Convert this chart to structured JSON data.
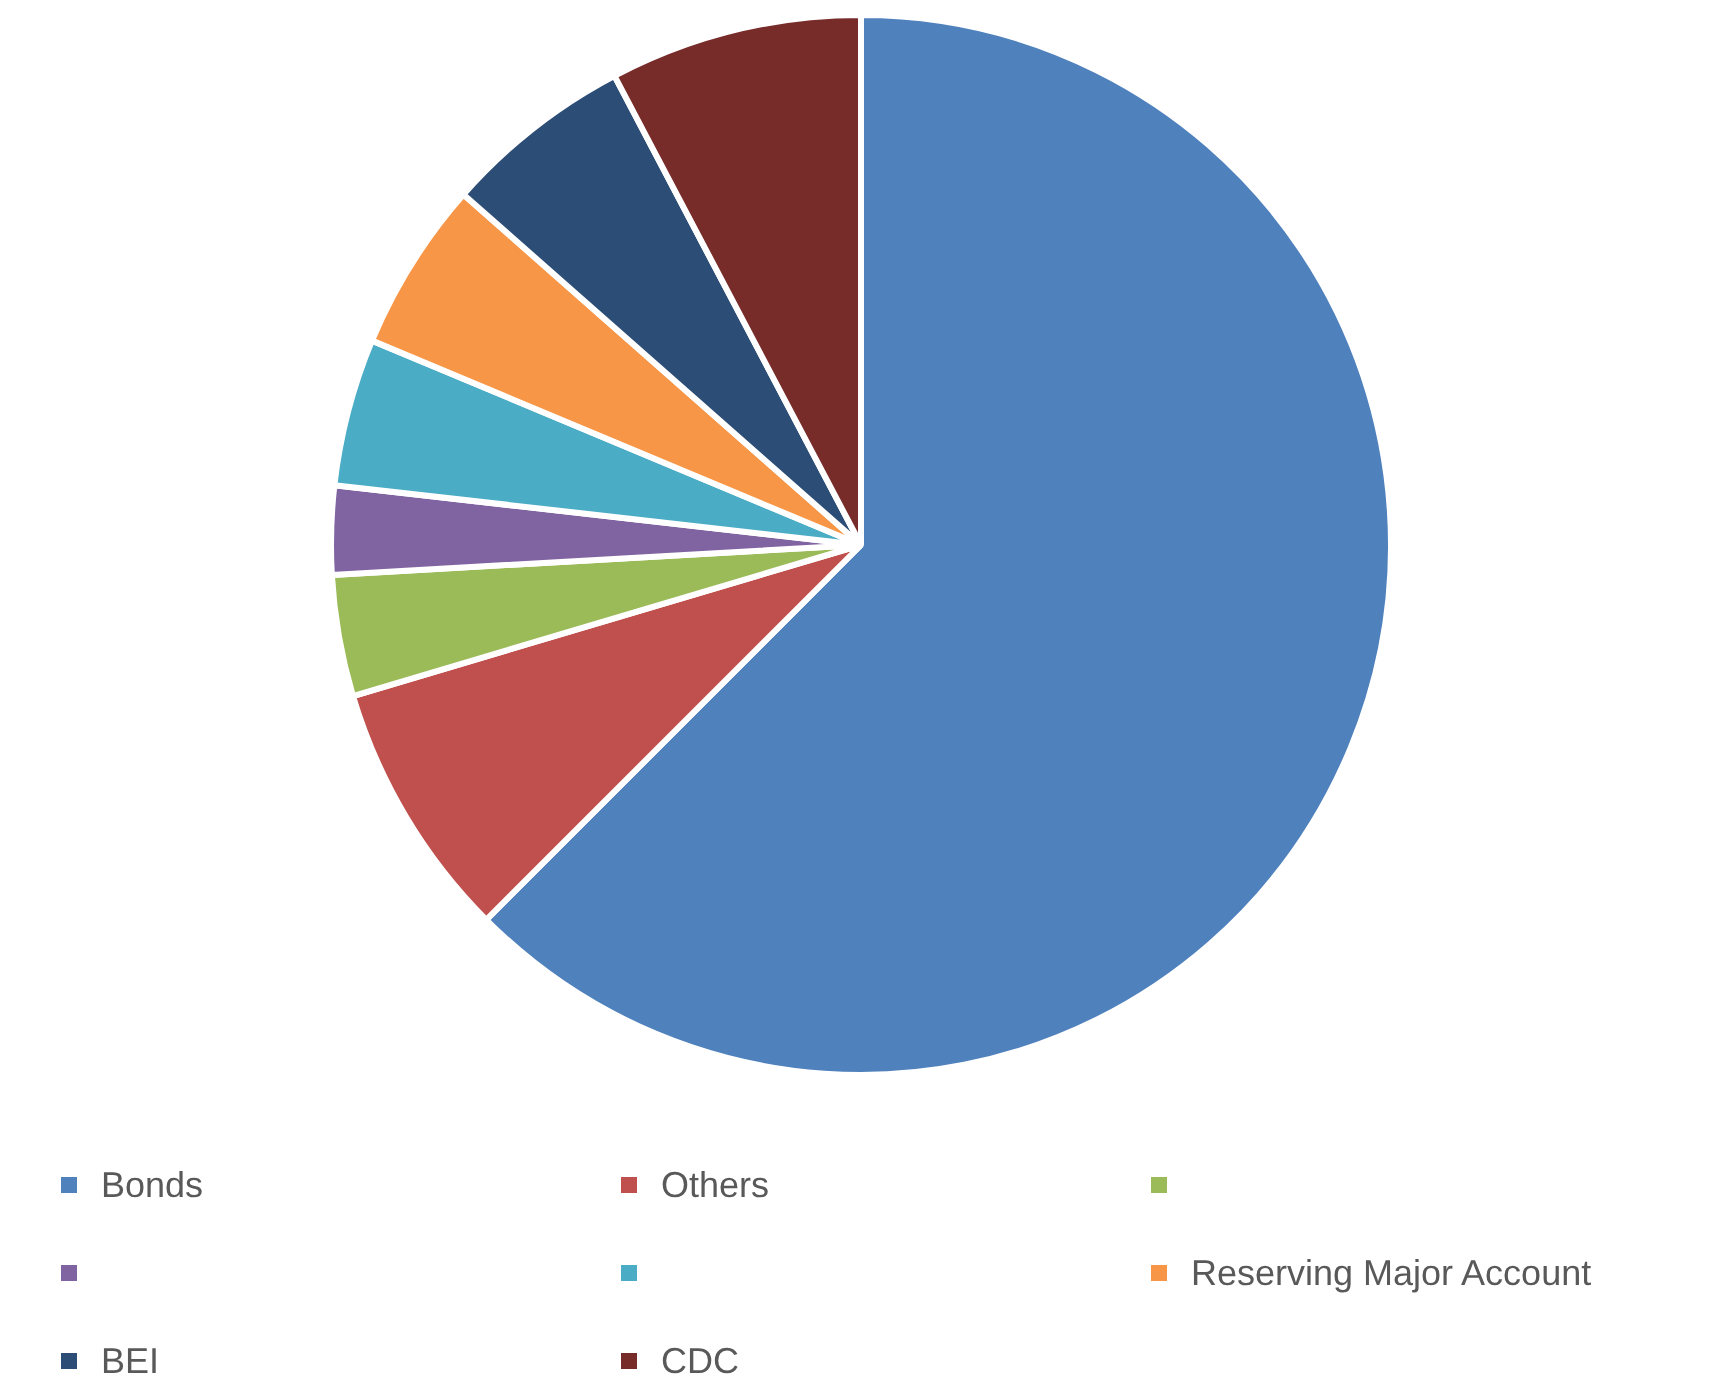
{
  "chart_data": {
    "type": "pie",
    "categories": [
      "Bonds",
      "Others",
      null,
      null,
      null,
      "Reserving Major Account",
      "BEI",
      "CDC"
    ],
    "values": [
      62.5,
      7.9,
      3.7,
      2.7,
      4.5,
      5.2,
      5.8,
      7.7
    ],
    "colors": [
      "#4f81bd",
      "#c0504d",
      "#9bbb59",
      "#8064a2",
      "#4bacc6",
      "#f79646",
      "#2c4d75",
      "#772c2a"
    ],
    "legend": "bottom"
  }
}
